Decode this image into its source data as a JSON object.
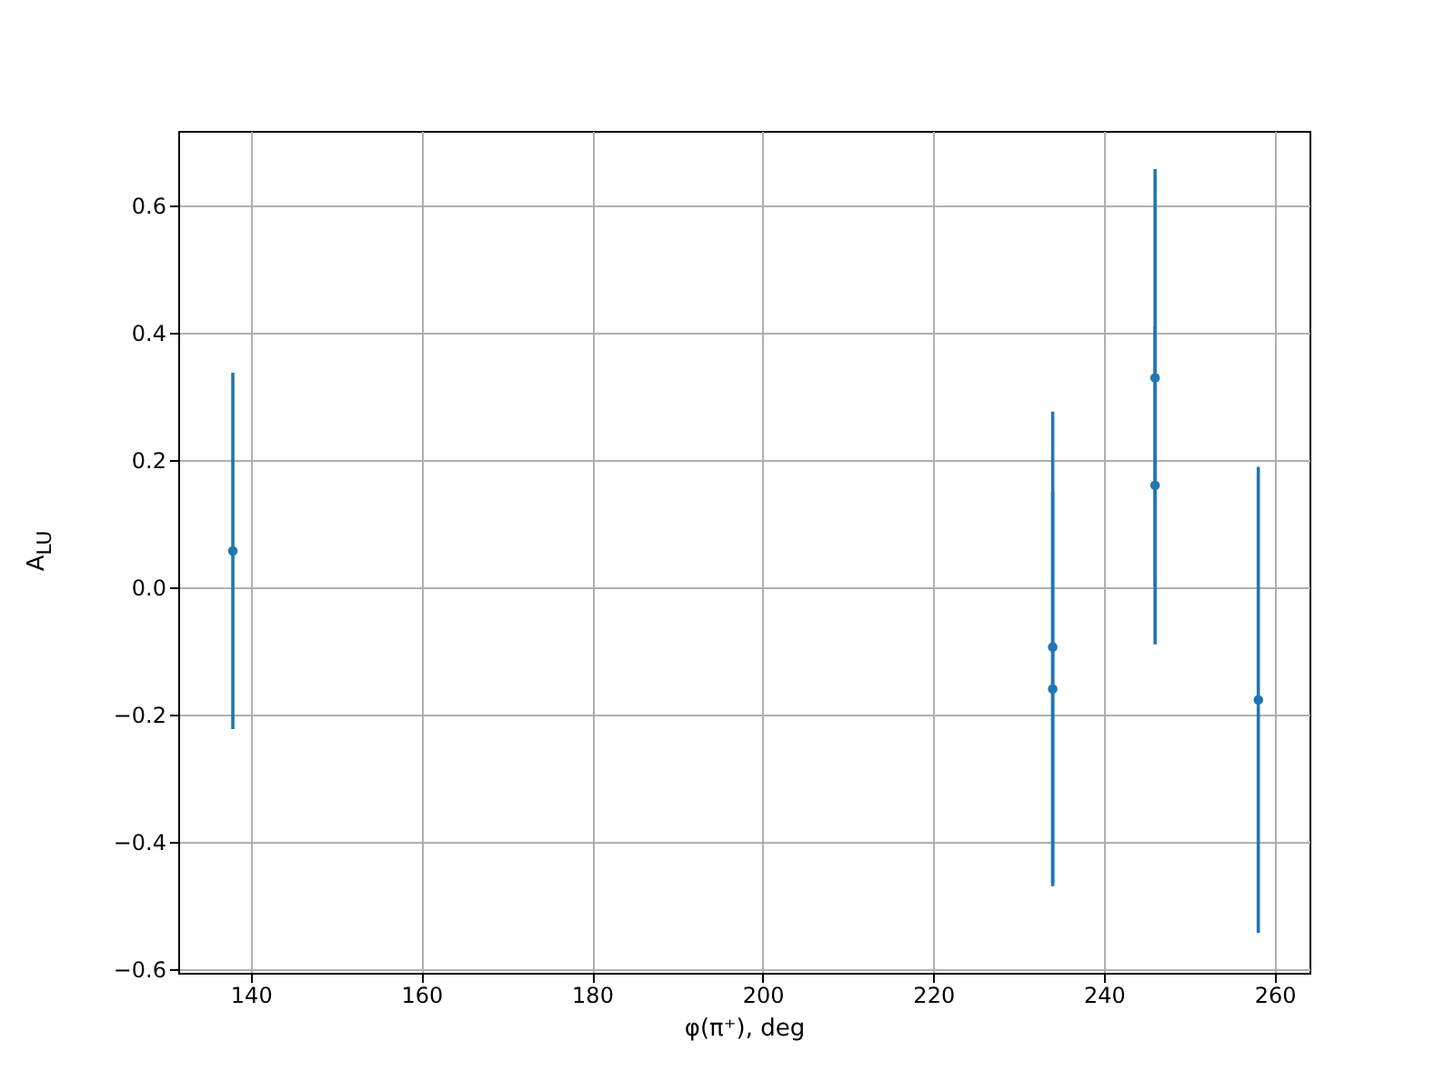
{
  "chart_data": {
    "type": "scatter",
    "xlabel": "φ(π⁺), deg",
    "ylabel": "A$_{LU}$",
    "xlim": [
      131.5,
      264.1
    ],
    "ylim": [
      -0.606,
      0.717
    ],
    "xticks": [
      140,
      160,
      180,
      200,
      220,
      240,
      260
    ],
    "yticks": [
      {
        "value": -0.6,
        "label": "−0.6"
      },
      {
        "value": -0.4,
        "label": "−0.4"
      },
      {
        "value": -0.2,
        "label": "−0.2"
      },
      {
        "value": 0,
        "label": "0.0"
      },
      {
        "value": 0.2,
        "label": "0.2"
      },
      {
        "value": 0.4,
        "label": "0.4"
      },
      {
        "value": 0.6,
        "label": "0.6"
      }
    ],
    "grid": true,
    "marker": "circle",
    "series": [
      {
        "color": "#1f77b4",
        "x": [
          137.9,
          234.0,
          234.0,
          246.0,
          246.0,
          258.1
        ],
        "values": [
          0.057,
          -0.094,
          -0.16,
          0.329,
          0.16,
          -0.177
        ],
        "errors": [
          0.28,
          0.37,
          0.31,
          0.328,
          0.25,
          0.366
        ]
      }
    ]
  }
}
